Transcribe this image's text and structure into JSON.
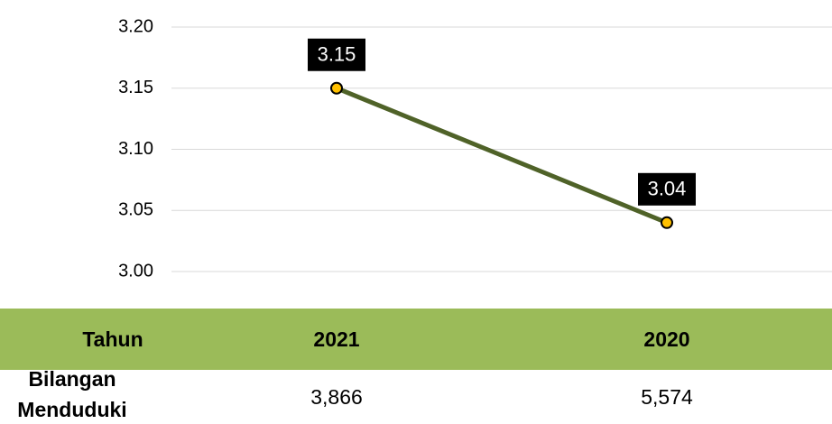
{
  "chart_data": {
    "type": "line",
    "categories": [
      "2021",
      "2020"
    ],
    "values": [
      3.15,
      3.04
    ],
    "color": "#4f6228",
    "marker_color": "#ffc000",
    "ylim": [
      3.0,
      3.2
    ],
    "yticks": [
      {
        "value": 3.0,
        "label": "3.00"
      },
      3.05,
      {
        "value": 3.1,
        "label": "3.10"
      },
      3.15,
      {
        "value": 3.2,
        "label": "3.20"
      }
    ],
    "grid": true
  },
  "table": {
    "header_label": "Tahun",
    "header_color": "#9bbb59",
    "rows": [
      [
        "Bilangan Menduduki",
        "3,866",
        "5,574"
      ]
    ]
  }
}
